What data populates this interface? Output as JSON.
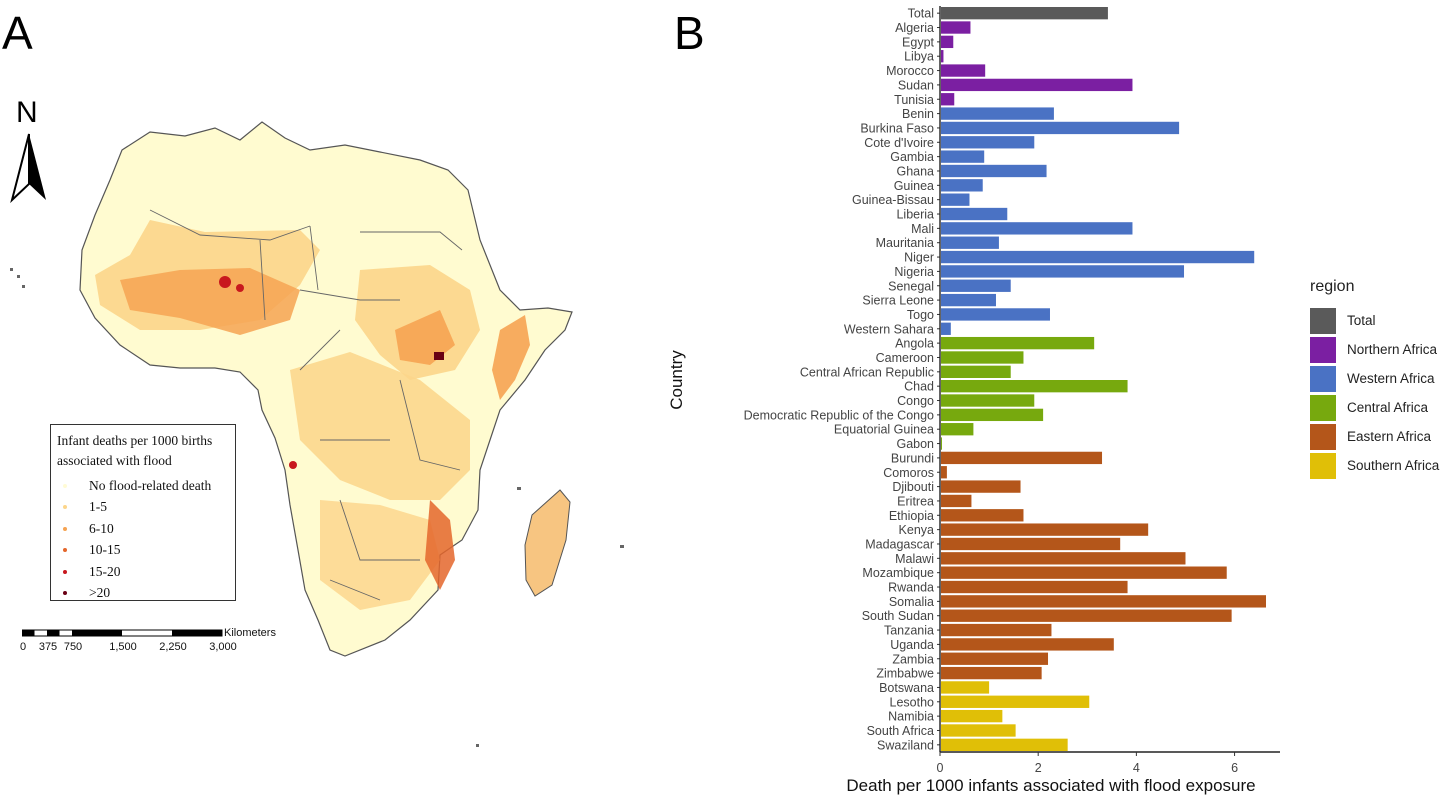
{
  "panels": {
    "a_label": "A",
    "b_label": "B"
  },
  "map": {
    "north_label": "N",
    "legend": {
      "title": "Infant deaths per 1000 births associated with flood",
      "items": [
        {
          "label": "No flood-related death",
          "color": "#fffbd5"
        },
        {
          "label": "1-5",
          "color": "#fcd58a"
        },
        {
          "label": "6-10",
          "color": "#f6a352"
        },
        {
          "label": "10-15",
          "color": "#e4662b"
        },
        {
          "label": "15-20",
          "color": "#c8181e"
        },
        {
          "label": ">20",
          "color": "#6a0014"
        }
      ]
    },
    "scale_bar": {
      "unit": "Kilometers",
      "ticks": [
        "0",
        "375",
        "750",
        "1,500",
        "2,250",
        "3,000"
      ]
    }
  },
  "chart_data": {
    "type": "bar",
    "orientation": "horizontal",
    "xlabel": "Death per 1000 infants associated with flood exposure",
    "ylabel": "Country",
    "xlim": [
      0,
      7
    ],
    "x_ticks": [
      0,
      2,
      4,
      6
    ],
    "legend_title": "region",
    "legend_position": "right",
    "region_colors": {
      "Total": "#5a5a5a",
      "Northern Africa": "#7b1fa2",
      "Western Africa": "#4a72c4",
      "Central Africa": "#77a90e",
      "Eastern Africa": "#b4561a",
      "Southern Africa": "#e0bf07"
    },
    "legend_items": [
      "Total",
      "Northern Africa",
      "Western Africa",
      "Central Africa",
      "Eastern Africa",
      "Southern Africa"
    ],
    "bars": [
      {
        "country": "Total",
        "region": "Total",
        "value": 3.4
      },
      {
        "country": "Algeria",
        "region": "Northern Africa",
        "value": 0.6
      },
      {
        "country": "Egypt",
        "region": "Northern Africa",
        "value": 0.25
      },
      {
        "country": "Libya",
        "region": "Northern Africa",
        "value": 0.05
      },
      {
        "country": "Morocco",
        "region": "Northern Africa",
        "value": 0.9
      },
      {
        "country": "Sudan",
        "region": "Northern Africa",
        "value": 3.9
      },
      {
        "country": "Tunisia",
        "region": "Northern Africa",
        "value": 0.27
      },
      {
        "country": "Benin",
        "region": "Western Africa",
        "value": 2.3
      },
      {
        "country": "Burkina Faso",
        "region": "Western Africa",
        "value": 4.85
      },
      {
        "country": "Cote d'Ivoire",
        "region": "Western Africa",
        "value": 1.9
      },
      {
        "country": "Gambia",
        "region": "Western Africa",
        "value": 0.88
      },
      {
        "country": "Ghana",
        "region": "Western Africa",
        "value": 2.15
      },
      {
        "country": "Guinea",
        "region": "Western Africa",
        "value": 0.85
      },
      {
        "country": "Guinea-Bissau",
        "region": "Western Africa",
        "value": 0.58
      },
      {
        "country": "Liberia",
        "region": "Western Africa",
        "value": 1.35
      },
      {
        "country": "Mali",
        "region": "Western Africa",
        "value": 3.9
      },
      {
        "country": "Mauritania",
        "region": "Western Africa",
        "value": 1.18
      },
      {
        "country": "Niger",
        "region": "Western Africa",
        "value": 6.38
      },
      {
        "country": "Nigeria",
        "region": "Western Africa",
        "value": 4.95
      },
      {
        "country": "Senegal",
        "region": "Western Africa",
        "value": 1.42
      },
      {
        "country": "Sierra Leone",
        "region": "Western Africa",
        "value": 1.12
      },
      {
        "country": "Togo",
        "region": "Western Africa",
        "value": 2.22
      },
      {
        "country": "Western Sahara",
        "region": "Western Africa",
        "value": 0.2
      },
      {
        "country": "Angola",
        "region": "Central Africa",
        "value": 3.12
      },
      {
        "country": "Cameroon",
        "region": "Central Africa",
        "value": 1.68
      },
      {
        "country": "Central African Republic",
        "region": "Central Africa",
        "value": 1.42
      },
      {
        "country": "Chad",
        "region": "Central Africa",
        "value": 3.8
      },
      {
        "country": "Congo",
        "region": "Central Africa",
        "value": 1.9
      },
      {
        "country": "Democratic Republic of the Congo",
        "region": "Central Africa",
        "value": 2.08
      },
      {
        "country": "Equatorial Guinea",
        "region": "Central Africa",
        "value": 0.66
      },
      {
        "country": "Gabon",
        "region": "Central Africa",
        "value": 0.02
      },
      {
        "country": "Burundi",
        "region": "Eastern Africa",
        "value": 3.28
      },
      {
        "country": "Comoros",
        "region": "Eastern Africa",
        "value": 0.12
      },
      {
        "country": "Djibouti",
        "region": "Eastern Africa",
        "value": 1.62
      },
      {
        "country": "Eritrea",
        "region": "Eastern Africa",
        "value": 0.62
      },
      {
        "country": "Ethiopia",
        "region": "Eastern Africa",
        "value": 1.68
      },
      {
        "country": "Kenya",
        "region": "Eastern Africa",
        "value": 4.22
      },
      {
        "country": "Madagascar",
        "region": "Eastern Africa",
        "value": 3.65
      },
      {
        "country": "Malawi",
        "region": "Eastern Africa",
        "value": 4.98
      },
      {
        "country": "Mozambique",
        "region": "Eastern Africa",
        "value": 5.82
      },
      {
        "country": "Rwanda",
        "region": "Eastern Africa",
        "value": 3.8
      },
      {
        "country": "Somalia",
        "region": "Eastern Africa",
        "value": 6.62
      },
      {
        "country": "South Sudan",
        "region": "Eastern Africa",
        "value": 5.92
      },
      {
        "country": "Tanzania",
        "region": "Eastern Africa",
        "value": 2.25
      },
      {
        "country": "Uganda",
        "region": "Eastern Africa",
        "value": 3.52
      },
      {
        "country": "Zambia",
        "region": "Eastern Africa",
        "value": 2.18
      },
      {
        "country": "Zimbabwe",
        "region": "Eastern Africa",
        "value": 2.05
      },
      {
        "country": "Botswana",
        "region": "Southern Africa",
        "value": 0.98
      },
      {
        "country": "Lesotho",
        "region": "Southern Africa",
        "value": 3.02
      },
      {
        "country": "Namibia",
        "region": "Southern Africa",
        "value": 1.25
      },
      {
        "country": "South Africa",
        "region": "Southern Africa",
        "value": 1.52
      },
      {
        "country": "Swaziland",
        "region": "Southern Africa",
        "value": 2.58
      }
    ]
  }
}
